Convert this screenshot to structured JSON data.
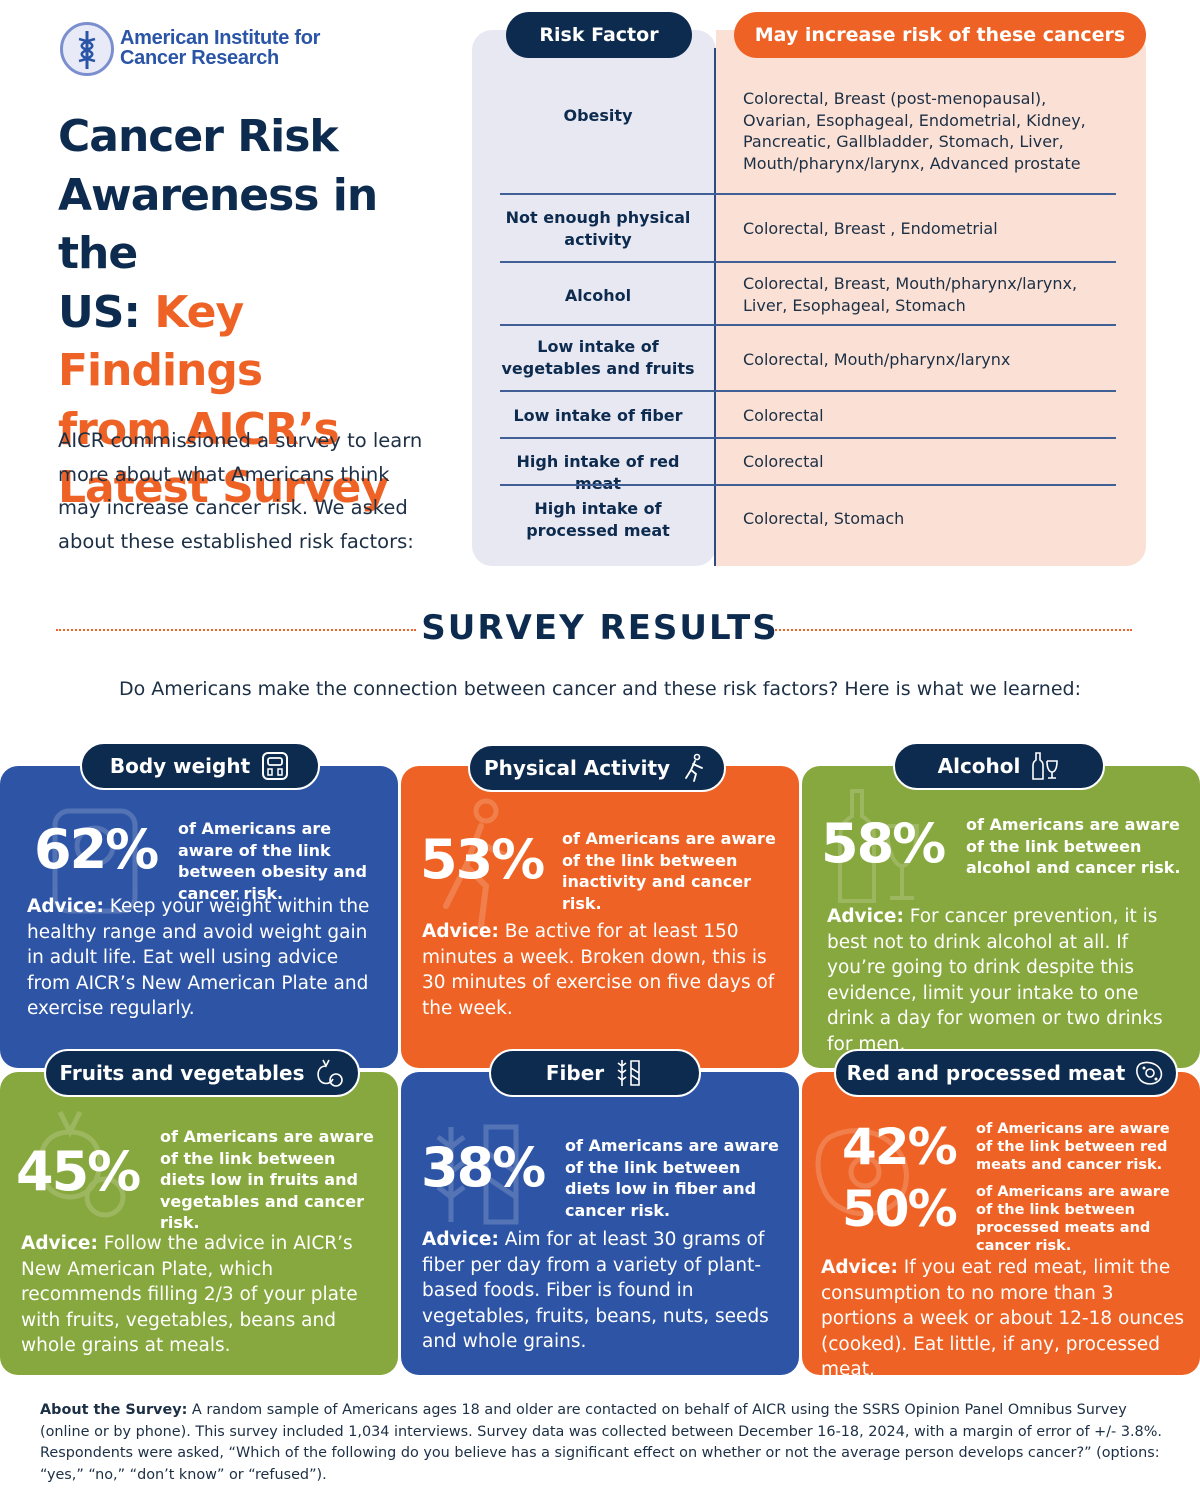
{
  "logo": {
    "line1": "American Institute for",
    "line2": "Cancer Research"
  },
  "title": {
    "line1": "Cancer Risk",
    "line2": "Awareness in the",
    "line3_dark": "US: ",
    "line3_orange": "Key Findings",
    "line4": "from AICR’s",
    "line5": "Latest Survey"
  },
  "intro": "AICR commissioned a survey to learn more about what Americans think may increase cancer risk. We asked about these established risk factors:",
  "risk_table": {
    "header_factor": "Risk Factor",
    "header_cancers": "May increase risk of these cancers",
    "rows": [
      {
        "factor": "Obesity",
        "cancers": "Colorectal, Breast (post-menopausal), Ovarian, Esophageal, Endometrial, Kidney, Pancreatic, Gallbladder, Stomach, Liver, Mouth/pharynx/larynx, Advanced prostate"
      },
      {
        "factor": "Not enough physical activity",
        "cancers": "Colorectal, Breast , Endometrial"
      },
      {
        "factor": "Alcohol",
        "cancers": "Colorectal, Breast, Mouth/pharynx/larynx, Liver, Esophageal, Stomach"
      },
      {
        "factor": "Low intake of vegetables and fruits",
        "cancers": "Colorectal, Mouth/pharynx/larynx"
      },
      {
        "factor": "Low intake of fiber",
        "cancers": "Colorectal"
      },
      {
        "factor": "High intake of red meat",
        "cancers": "Colorectal"
      },
      {
        "factor": "High intake of processed meat",
        "cancers": "Colorectal, Stomach"
      }
    ]
  },
  "survey": {
    "title": "SURVEY RESULTS",
    "question": "Do Americans make the connection between cancer and these risk factors? Here is what we learned:"
  },
  "cards": {
    "body_weight": {
      "label": "Body weight",
      "icon": "scale-icon",
      "percent": "62%",
      "stat": "of Americans are aware of the link between obesity and cancer risk.",
      "advice_label": "Advice:",
      "advice": " Keep your weight within the healthy range and avoid weight gain in adult life. Eat well using advice from AICR’s New American Plate and exercise regularly."
    },
    "physical_activity": {
      "label": "Physical Activity",
      "icon": "runner-icon",
      "percent": "53%",
      "stat": "of Americans are aware of the link between inactivity and cancer risk.",
      "advice_label": "Advice:",
      "advice": " Be active for at least 150 minutes a week. Broken down, this is 30 minutes of exercise on five days of the week."
    },
    "alcohol": {
      "label": "Alcohol",
      "icon": "bottle-glass-icon",
      "percent": "58%",
      "stat": "of Americans are aware of the link between alcohol and cancer risk.",
      "advice_label": "Advice:",
      "advice": " For cancer prevention, it is best not to drink alcohol at all. If you’re going to drink despite this evidence, limit your intake to one drink a day for women or two drinks for men."
    },
    "fruits_vegetables": {
      "label": "Fruits and vegetables",
      "icon": "fruit-icon",
      "percent": "45%",
      "stat": "of Americans are aware of the link between diets low in fruits and vegetables and cancer risk.",
      "advice_label": "Advice:",
      "advice": " Follow the advice in AICR’s New American Plate, which recommends filling 2/3 of your plate with fruits, vegetables, beans and whole grains at meals."
    },
    "fiber": {
      "label": "Fiber",
      "icon": "wheat-icon",
      "percent": "38%",
      "stat": "of Americans are aware of the link between diets low in fiber and cancer risk.",
      "advice_label": "Advice:",
      "advice": " Aim for at least 30 grams of fiber per day from a variety of plant-based foods. Fiber is found in vegetables, fruits, beans, nuts, seeds and whole grains."
    },
    "meat": {
      "label": "Red and processed meat",
      "icon": "meat-icon",
      "percent_red": "42%",
      "stat_red": "of Americans are aware of the link between red meats and cancer risk.",
      "percent_processed": "50%",
      "stat_processed": "of Americans are aware of the link between processed meats and cancer risk.",
      "advice_label": "Advice:",
      "advice": " If you eat red meat, limit the consumption to no more than 3 portions a week or about 12-18 ounces (cooked). Eat little, if any, processed meat."
    }
  },
  "about": {
    "label": "About the Survey:",
    "text": " A random sample of Americans ages 18 and older are contacted on behalf of AICR using the SSRS Opinion Panel Omnibus Survey (online or by phone). This survey included 1,034 interviews. Survey data was collected between December 16-18, 2024, with a margin of error of +/- 3.8%. Respondents were asked, “Which of the following do you believe has a significant effect on whether or not the average person develops cancer?” (options: “yes,” “no,” “don’t know” or “refused”)."
  },
  "colors": {
    "navy": "#0d2b4e",
    "orange": "#ee6325",
    "blue": "#2e55a5",
    "green": "#87a83e"
  }
}
